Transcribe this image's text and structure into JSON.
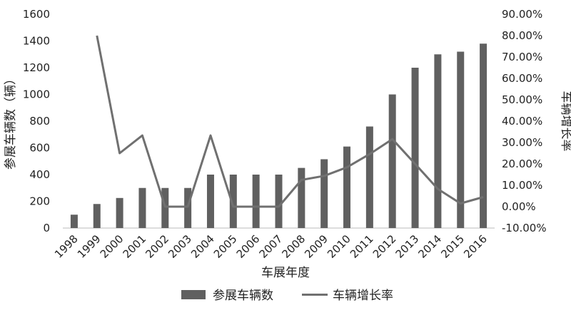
{
  "chart_data": {
    "type": "bar",
    "categories": [
      "1998",
      "1999",
      "2000",
      "2001",
      "2002",
      "2003",
      "2004",
      "2005",
      "2006",
      "2007",
      "2008",
      "2009",
      "2010",
      "2011",
      "2012",
      "2013",
      "2014",
      "2015",
      "2016"
    ],
    "series": [
      {
        "name": "参展车辆数",
        "type": "bar",
        "axis": "left",
        "color": "#606060",
        "values": [
          100,
          180,
          225,
          300,
          300,
          300,
          400,
          400,
          400,
          400,
          450,
          515,
          610,
          760,
          1000,
          1200,
          1300,
          1320,
          1380
        ]
      },
      {
        "name": "车辆增长率",
        "type": "line",
        "axis": "right",
        "color": "#707070",
        "values": [
          null,
          80.0,
          25.0,
          33.3,
          0.0,
          0.0,
          33.3,
          0.0,
          0.0,
          0.0,
          12.5,
          14.4,
          18.4,
          24.6,
          31.6,
          20.0,
          8.3,
          1.5,
          4.5
        ]
      }
    ],
    "xlabel": "车展年度",
    "ylabel": "参展车辆数（辆）",
    "y2label": "车辆增长率",
    "ylim": [
      0,
      1600
    ],
    "yticks": [
      "0",
      "200",
      "400",
      "600",
      "800",
      "1000",
      "1200",
      "1400",
      "1600"
    ],
    "y2lim": [
      -10,
      90
    ],
    "y2ticks": [
      "-10.00%",
      "0.00%",
      "10.00%",
      "20.00%",
      "30.00%",
      "40.00%",
      "50.00%",
      "60.00%",
      "70.00%",
      "80.00%",
      "90.00%"
    ],
    "grid": false,
    "legend": "bottom"
  }
}
